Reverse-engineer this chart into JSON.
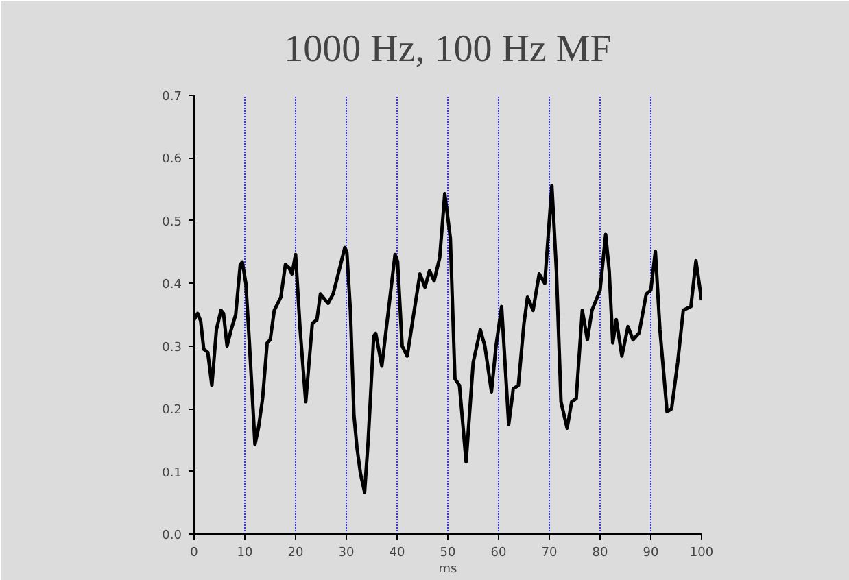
{
  "chart_data": {
    "type": "line",
    "title": "1000 Hz, 100 Hz MF",
    "xlabel": "ms",
    "xlim": [
      0,
      100
    ],
    "ylim": [
      0,
      0.7
    ],
    "xticks": [
      0,
      10,
      20,
      30,
      40,
      50,
      60,
      70,
      80,
      90,
      100
    ],
    "yticks": [
      {
        "value": 0,
        "label": "0.0"
      },
      0.1,
      0.2,
      0.3,
      0.4,
      0.5,
      0.6,
      0.7
    ],
    "grid": "x",
    "line_style": "solid",
    "marker": "none",
    "series": [
      {
        "color": "#000000",
        "x": [
          0,
          0.7,
          1.3,
          1.9,
          2.7,
          3.5,
          4.4,
          5.3,
          5.8,
          6.5,
          7.3,
          8.2,
          9.1,
          9.5,
          10.2,
          10.9,
          12,
          12.7,
          13.5,
          14.4,
          15,
          15.8,
          17.1,
          18,
          18.7,
          19.3,
          20,
          20.9,
          22,
          23.3,
          24.2,
          24.9,
          26.4,
          27.4,
          28.4,
          29.7,
          30.1,
          30.8,
          31.5,
          32.1,
          32.8,
          33.6,
          34.3,
          35.4,
          35.8,
          37,
          38.3,
          39.6,
          40.1,
          41,
          42,
          43.2,
          44.5,
          45.5,
          46.4,
          47.3,
          48.4,
          49.4,
          50.5,
          51.4,
          52.3,
          53.6,
          55,
          56.4,
          57.3,
          58.6,
          59.5,
          60.6,
          62,
          62.9,
          63.9,
          65,
          65.7,
          66.8,
          68,
          69.1,
          70.5,
          71.4,
          72.3,
          73.5,
          74.4,
          75.3,
          76.5,
          77.5,
          78.4,
          80,
          81.1,
          81.8,
          82.5,
          83.2,
          84.3,
          85.5,
          86.5,
          87.7,
          89.1,
          90,
          90.9,
          91.8,
          93.2,
          94.1,
          95.3,
          96.4,
          97.9,
          98.9,
          100
        ],
        "values": [
          0.342,
          0.352,
          0.34,
          0.295,
          0.29,
          0.237,
          0.326,
          0.357,
          0.352,
          0.3,
          0.326,
          0.35,
          0.43,
          0.434,
          0.4,
          0.305,
          0.143,
          0.17,
          0.216,
          0.305,
          0.31,
          0.357,
          0.378,
          0.43,
          0.425,
          0.415,
          0.446,
          0.326,
          0.211,
          0.336,
          0.342,
          0.383,
          0.368,
          0.383,
          0.415,
          0.457,
          0.45,
          0.357,
          0.19,
          0.138,
          0.096,
          0.067,
          0.148,
          0.316,
          0.32,
          0.268,
          0.357,
          0.446,
          0.435,
          0.3,
          0.284,
          0.347,
          0.415,
          0.394,
          0.42,
          0.404,
          0.441,
          0.543,
          0.472,
          0.248,
          0.237,
          0.115,
          0.274,
          0.326,
          0.3,
          0.227,
          0.3,
          0.363,
          0.175,
          0.232,
          0.237,
          0.336,
          0.378,
          0.357,
          0.415,
          0.4,
          0.556,
          0.42,
          0.211,
          0.169,
          0.211,
          0.216,
          0.357,
          0.31,
          0.357,
          0.389,
          0.478,
          0.42,
          0.305,
          0.342,
          0.284,
          0.331,
          0.31,
          0.321,
          0.383,
          0.389,
          0.451,
          0.326,
          0.195,
          0.2,
          0.274,
          0.357,
          0.363,
          0.436,
          0.373
        ]
      }
    ]
  }
}
